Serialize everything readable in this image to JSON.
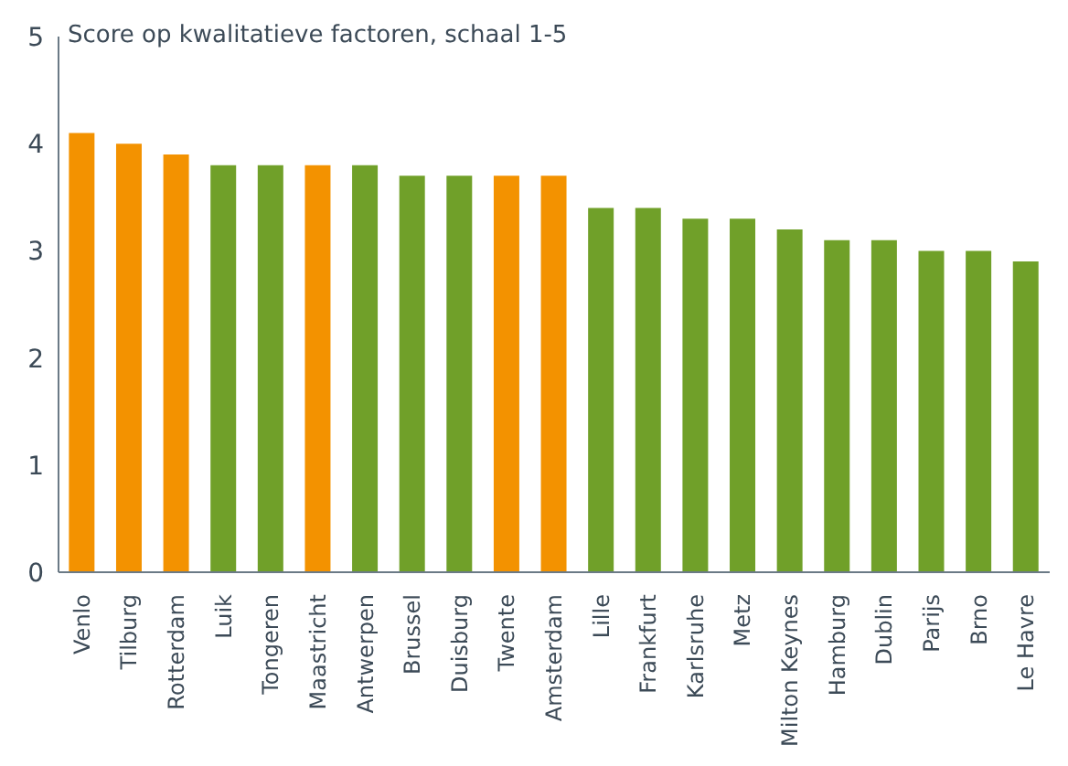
{
  "chart_data": {
    "type": "bar",
    "title": "Score op kwalitatieve factoren, schaal 1-5",
    "categories": [
      "Venlo",
      "Tilburg",
      "Rotterdam",
      "Luik",
      "Tongeren",
      "Maastricht",
      "Antwerpen",
      "Brussel",
      "Duisburg",
      "Twente",
      "Amsterdam",
      "Lille",
      "Frankfurt",
      "Karlsruhe",
      "Metz",
      "Milton Keynes",
      "Hamburg",
      "Dublin",
      "Parijs",
      "Brno",
      "Le Havre"
    ],
    "values": [
      4.1,
      4.0,
      3.9,
      3.8,
      3.8,
      3.8,
      3.8,
      3.7,
      3.7,
      3.7,
      3.7,
      3.4,
      3.4,
      3.3,
      3.3,
      3.2,
      3.1,
      3.1,
      3.0,
      3.0,
      2.9
    ],
    "colors": [
      "#f39200",
      "#f39200",
      "#f39200",
      "#70a029",
      "#70a029",
      "#f39200",
      "#70a029",
      "#70a029",
      "#70a029",
      "#f39200",
      "#f39200",
      "#70a029",
      "#70a029",
      "#70a029",
      "#70a029",
      "#70a029",
      "#70a029",
      "#70a029",
      "#70a029",
      "#70a029",
      "#70a029"
    ],
    "ylim": [
      0,
      5
    ],
    "yticks": [
      0,
      1,
      2,
      3,
      4,
      5
    ],
    "grid": false
  }
}
